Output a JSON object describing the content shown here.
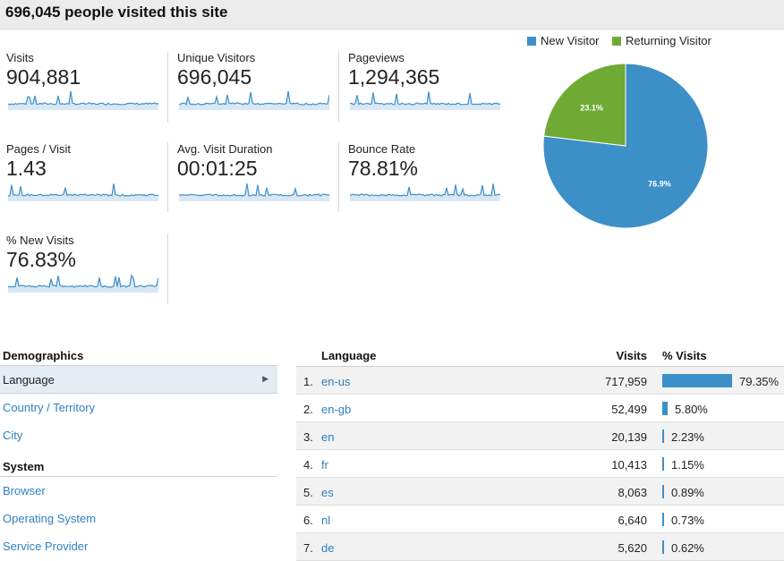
{
  "header": {
    "title": "696,045 people visited this site"
  },
  "metrics": [
    {
      "label": "Visits",
      "value": "904,881"
    },
    {
      "label": "Unique Visitors",
      "value": "696,045"
    },
    {
      "label": "Pageviews",
      "value": "1,294,365"
    },
    {
      "label": "Pages / Visit",
      "value": "1.43"
    },
    {
      "label": "Avg. Visit Duration",
      "value": "00:01:25"
    },
    {
      "label": "Bounce Rate",
      "value": "78.81%"
    },
    {
      "label": "% New Visits",
      "value": "76.83%"
    }
  ],
  "chart_data": {
    "type": "pie",
    "categories": [
      "New Visitor",
      "Returning Visitor"
    ],
    "values": [
      76.9,
      23.1
    ],
    "slice_labels": [
      "76.9%",
      "23.1%"
    ],
    "colors": [
      "#3d8fc8",
      "#6faa35"
    ],
    "legend": "top"
  },
  "nav": {
    "demographics_heading": "Demographics",
    "language": "Language",
    "country": "Country / Territory",
    "city": "City",
    "system_heading": "System",
    "browser": "Browser",
    "os": "Operating System",
    "provider": "Service Provider",
    "arrow_icon": "chevron-right-icon"
  },
  "table": {
    "col_language": "Language",
    "col_visits": "Visits",
    "col_pct": "% Visits",
    "rows": [
      {
        "num": "1.",
        "lang": "en-us",
        "visits": "717,959",
        "pct": "79.35%",
        "share": 79.35
      },
      {
        "num": "2.",
        "lang": "en-gb",
        "visits": "52,499",
        "pct": "5.80%",
        "share": 5.8
      },
      {
        "num": "3.",
        "lang": "en",
        "visits": "20,139",
        "pct": "2.23%",
        "share": 2.23
      },
      {
        "num": "4.",
        "lang": "fr",
        "visits": "10,413",
        "pct": "1.15%",
        "share": 1.15
      },
      {
        "num": "5.",
        "lang": "es",
        "visits": "8,063",
        "pct": "0.89%",
        "share": 0.89
      },
      {
        "num": "6.",
        "lang": "nl",
        "visits": "6,640",
        "pct": "0.73%",
        "share": 0.73
      },
      {
        "num": "7.",
        "lang": "de",
        "visits": "5,620",
        "pct": "0.62%",
        "share": 0.62
      }
    ]
  },
  "colors": {
    "accent": "#3d8fc8",
    "returning": "#6faa35",
    "link": "#2f7fc0"
  }
}
